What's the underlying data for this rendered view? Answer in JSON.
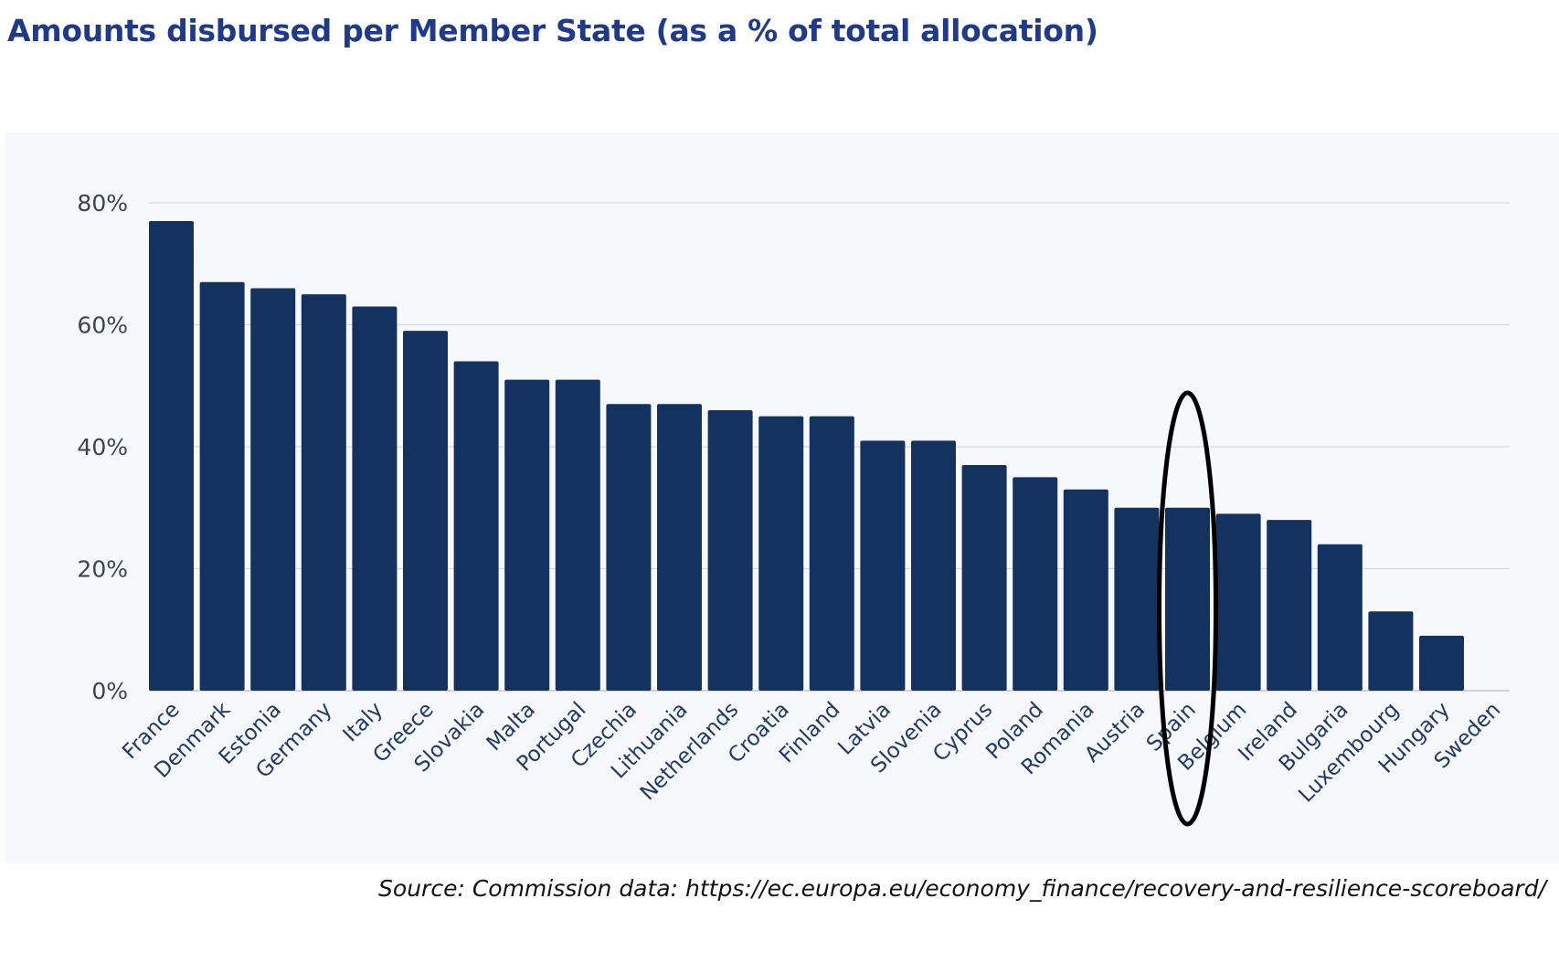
{
  "title": "Amounts disbursed per Member State (as a % of total allocation)",
  "source": "Source: Commission data: https://ec.europa.eu/economy_finance/recovery-and-resilience-scoreboard/",
  "colors": {
    "bar": "#14325f",
    "title": "#1f3a8a",
    "highlight": "#000000",
    "grid": "#d5d9e0"
  },
  "chart_data": {
    "type": "bar",
    "title": "Amounts disbursed per Member State (as a % of total allocation)",
    "xlabel": "",
    "ylabel": "",
    "ylim": [
      0,
      80
    ],
    "yticks": [
      "0%",
      "20%",
      "40%",
      "60%",
      "80%"
    ],
    "ytick_values": [
      0,
      20,
      40,
      60,
      80
    ],
    "grid": true,
    "unit": "%",
    "categories": [
      "France",
      "Denmark",
      "Estonia",
      "Germany",
      "Italy",
      "Greece",
      "Slovakia",
      "Malta",
      "Portugal",
      "Czechia",
      "Lithuania",
      "Netherlands",
      "Croatia",
      "Finland",
      "Latvia",
      "Slovenia",
      "Cyprus",
      "Poland",
      "Romania",
      "Austria",
      "Spain",
      "Belgium",
      "Ireland",
      "Bulgaria",
      "Luxembourg",
      "Hungary",
      "Sweden"
    ],
    "values": [
      77,
      67,
      66,
      65,
      63,
      59,
      54,
      51,
      51,
      47,
      47,
      46,
      45,
      45,
      41,
      41,
      37,
      35,
      33,
      30,
      30,
      29,
      28,
      24,
      13,
      9,
      0
    ],
    "annotation": {
      "type": "ellipse-highlight",
      "category": "Spain"
    }
  }
}
